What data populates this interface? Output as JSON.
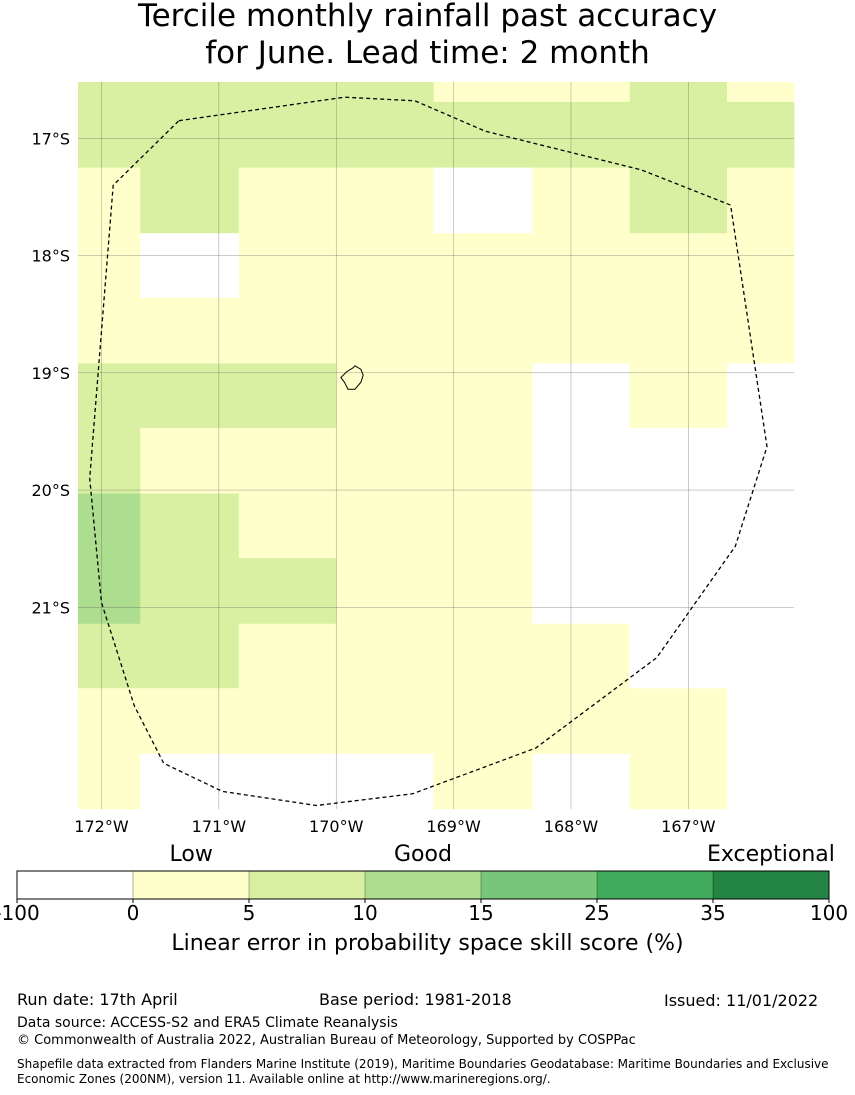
{
  "title": {
    "line1": "Tercile monthly rainfall past accuracy",
    "line2": "for June. Lead time: 2 month"
  },
  "map": {
    "lon_range": [
      -172.2,
      -166.1
    ],
    "lat_range": [
      -22.72,
      -16.52
    ],
    "lon_ticks": [
      {
        "value": -172,
        "label": "172°W"
      },
      {
        "value": -171,
        "label": "171°W"
      },
      {
        "value": -170,
        "label": "170°W"
      },
      {
        "value": -169,
        "label": "169°W"
      },
      {
        "value": -168,
        "label": "168°W"
      },
      {
        "value": -167,
        "label": "167°W"
      }
    ],
    "lat_ticks": [
      {
        "value": -17,
        "label": "17°S"
      },
      {
        "value": -18,
        "label": "18°S"
      },
      {
        "value": -19,
        "label": "19°S"
      },
      {
        "value": -20,
        "label": "20°S"
      },
      {
        "value": -21,
        "label": "21°S"
      }
    ],
    "grid_lon_edges": [
      -172.2,
      -171.67,
      -170.83,
      -170.0,
      -169.17,
      -168.33,
      -167.5,
      -166.67,
      -166.1
    ],
    "grid_lat_edges": [
      -16.52,
      -16.69,
      -17.25,
      -17.81,
      -18.36,
      -18.92,
      -19.47,
      -20.03,
      -20.58,
      -21.14,
      -21.69,
      -22.25,
      -22.72
    ],
    "grid_categories": [
      [
        2,
        2,
        2,
        2,
        1,
        1,
        2,
        1
      ],
      [
        2,
        2,
        2,
        2,
        2,
        2,
        2,
        2
      ],
      [
        1,
        2,
        1,
        1,
        0,
        1,
        2,
        1
      ],
      [
        1,
        0,
        1,
        1,
        1,
        1,
        1,
        1
      ],
      [
        1,
        1,
        1,
        1,
        1,
        1,
        1,
        1
      ],
      [
        2,
        2,
        2,
        1,
        1,
        0,
        1,
        0
      ],
      [
        2,
        1,
        1,
        1,
        1,
        0,
        0,
        0
      ],
      [
        3,
        2,
        1,
        1,
        1,
        0,
        0,
        0
      ],
      [
        3,
        2,
        2,
        1,
        1,
        0,
        0,
        0
      ],
      [
        2,
        2,
        1,
        1,
        1,
        1,
        0,
        0
      ],
      [
        1,
        1,
        1,
        1,
        1,
        1,
        1,
        0
      ],
      [
        1,
        0,
        0,
        0,
        1,
        0,
        1,
        0
      ]
    ],
    "eez_boundary": [
      [
        -171.34,
        -16.85
      ],
      [
        -169.93,
        -16.65
      ],
      [
        -169.33,
        -16.68
      ],
      [
        -168.73,
        -16.94
      ],
      [
        -167.4,
        -17.27
      ],
      [
        -166.64,
        -17.57
      ],
      [
        -166.33,
        -19.63
      ],
      [
        -166.6,
        -20.48
      ],
      [
        -167.27,
        -21.43
      ],
      [
        -168.3,
        -22.2
      ],
      [
        -169.35,
        -22.59
      ],
      [
        -170.17,
        -22.69
      ],
      [
        -170.97,
        -22.57
      ],
      [
        -171.47,
        -22.33
      ],
      [
        -171.72,
        -21.84
      ],
      [
        -172.0,
        -20.96
      ],
      [
        -172.1,
        -19.9
      ],
      [
        -171.9,
        -17.4
      ],
      [
        -171.34,
        -16.85
      ]
    ],
    "island_outline": [
      [
        -169.84,
        -18.94
      ],
      [
        -169.79,
        -18.97
      ],
      [
        -169.77,
        -19.02
      ],
      [
        -169.79,
        -19.08
      ],
      [
        -169.84,
        -19.14
      ],
      [
        -169.9,
        -19.14
      ],
      [
        -169.93,
        -19.08
      ],
      [
        -169.96,
        -19.04
      ],
      [
        -169.91,
        -18.99
      ],
      [
        -169.86,
        -18.96
      ],
      [
        -169.84,
        -18.94
      ]
    ]
  },
  "colorbar": {
    "colors": [
      "#ffffff",
      "#ffffcc",
      "#d9f0a3",
      "#addd8e",
      "#78c679",
      "#41ab5d",
      "#238443"
    ],
    "tick_labels": [
      "-100",
      "0",
      "5",
      "10",
      "15",
      "25",
      "35",
      "100"
    ],
    "category_labels": [
      {
        "label": "Low",
        "center_index": 1.5
      },
      {
        "label": "Good",
        "center_index": 3.5
      },
      {
        "label": "Exceptional",
        "center_index": 6.5
      }
    ],
    "title": "Linear error in probability space skill score (%)"
  },
  "footer": {
    "run_date": "Run date: 17th April",
    "base_period": "Base period: 1981-2018",
    "issued": "Issued: 11/01/2022",
    "data_source": "Data source: ACCESS-S2 and ERA5 Climate Reanalysis",
    "copyright": "© Commonwealth of Australia 2022, Australian Bureau of Meteorology, Supported by COSPPac",
    "shapefile_line1": "Shapefile data extracted from Flanders Marine Institute (2019), Maritime Boundaries Geodatabase: Maritime Boundaries and Exclusive",
    "shapefile_line2": "Economic Zones (200NM), version 11. Available online at http://www.marineregions.org/."
  }
}
